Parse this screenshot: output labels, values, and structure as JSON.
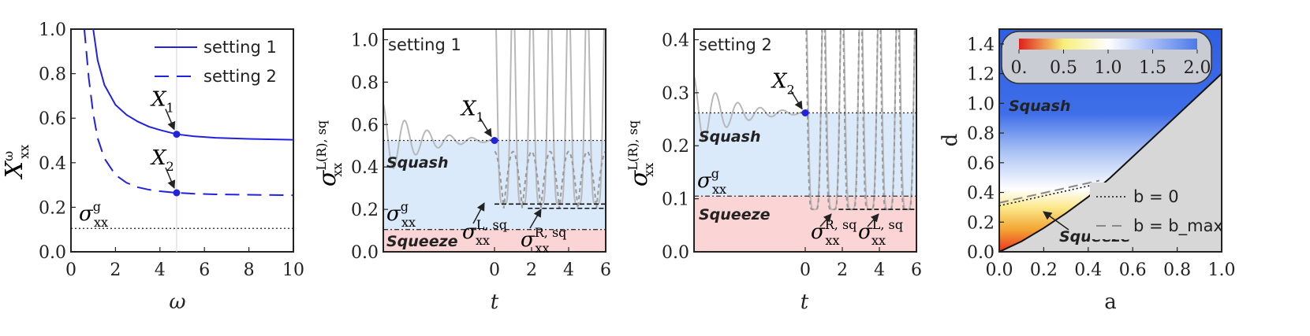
{
  "colors": {
    "blue": "#2222dd",
    "gray": "#b8b8b8",
    "squash_fill": "#dbeafb",
    "squeeze_fill": "#fbd5d5",
    "frame": "#222222"
  },
  "chart_data": [
    {
      "type": "line",
      "panel": "a",
      "title": "",
      "xlabel": "ω",
      "ylabel": "X_xx^ω",
      "ylabel_base": "X",
      "ylabel_sub": "xx",
      "ylabel_sup": "ω",
      "xlim": [
        0,
        10
      ],
      "ylim": [
        0,
        1.0
      ],
      "xticks": [
        "0",
        "2",
        "4",
        "6",
        "8",
        "10"
      ],
      "yticks": [
        "0.0",
        "0.2",
        "0.4",
        "0.6",
        "0.8",
        "1.0"
      ],
      "series": [
        {
          "name": "setting 1",
          "style": "solid",
          "x": [
            1.0,
            1.2,
            1.5,
            2,
            2.5,
            3,
            3.5,
            4,
            4.75,
            5.5,
            6.5,
            8,
            10
          ],
          "y": [
            1.0,
            0.86,
            0.75,
            0.66,
            0.615,
            0.585,
            0.562,
            0.547,
            0.528,
            0.519,
            0.512,
            0.507,
            0.503
          ]
        },
        {
          "name": "setting 2",
          "style": "dashed",
          "x": [
            0.6,
            0.8,
            1.0,
            1.2,
            1.5,
            2,
            2.5,
            3,
            3.5,
            4,
            4.75,
            5.5,
            6.5,
            8,
            10
          ],
          "y": [
            1.0,
            0.78,
            0.62,
            0.51,
            0.42,
            0.345,
            0.31,
            0.29,
            0.279,
            0.272,
            0.265,
            0.261,
            0.258,
            0.256,
            0.254
          ]
        }
      ],
      "markers": [
        {
          "label": "X",
          "sub": "1",
          "x": 4.75,
          "y": 0.528
        },
        {
          "label": "X",
          "sub": "2",
          "x": 4.75,
          "y": 0.265
        }
      ],
      "reference_line": {
        "label": "σ",
        "sub": "xx",
        "sup": "g",
        "y": 0.105
      },
      "vline_x": 4.75,
      "legend": [
        "setting 1",
        "setting 2"
      ]
    },
    {
      "type": "line",
      "panel": "b",
      "title": "setting 1",
      "xlabel": "t",
      "ylabel": "σ_xx^{L(R),sq}",
      "ylabel_base": "σ",
      "ylabel_sub": "xx",
      "ylabel_sup": "L(R), sq",
      "xlim": [
        -6,
        6
      ],
      "ylim": [
        0,
        1.05
      ],
      "xticks": [
        "0",
        "2",
        "4",
        "6"
      ],
      "yticks": [
        "0.0",
        "0.2",
        "0.4",
        "0.6",
        "0.8",
        "1.0"
      ],
      "levels": {
        "squash_top": 0.525,
        "g_level": 0.105,
        "L_level": 0.225,
        "R_level": 0.205
      },
      "marker": {
        "label": "X",
        "sub": "1",
        "x": 0,
        "y": 0.525
      },
      "region_labels": [
        "Squash",
        "Squeeze"
      ],
      "annotations": [
        {
          "label": "σ",
          "sub": "xx",
          "sup": "g"
        },
        {
          "label": "σ",
          "sub": "xx",
          "sup": "L, sq"
        },
        {
          "label": "σ",
          "sub": "xx",
          "sup": "R, sq"
        }
      ],
      "oscillation_periods": [
        1,
        2,
        3,
        4,
        5,
        6
      ]
    },
    {
      "type": "line",
      "panel": "c",
      "title": "setting 2",
      "xlabel": "t",
      "ylabel": "σ_xx^{L(R),sq}",
      "ylabel_base": "σ",
      "ylabel_sub": "xx",
      "ylabel_sup": "L(R), sq",
      "xlim": [
        -6,
        6
      ],
      "ylim": [
        0,
        0.42
      ],
      "xticks": [
        "0",
        "2",
        "4",
        "6"
      ],
      "yticks": [
        "0.0",
        "0.1",
        "0.2",
        "0.3",
        "0.4"
      ],
      "levels": {
        "squash_top": 0.262,
        "g_level": 0.105,
        "L_level": 0.08,
        "R_level": 0.08
      },
      "marker": {
        "label": "X",
        "sub": "2",
        "x": 0,
        "y": 0.262
      },
      "region_labels": [
        "Squash",
        "Squeeze"
      ],
      "annotations": [
        {
          "label": "σ",
          "sub": "xx",
          "sup": "g"
        },
        {
          "label": "σ",
          "sub": "xx",
          "sup": "R, sq"
        },
        {
          "label": "σ",
          "sub": "xx",
          "sup": "L, sq"
        }
      ],
      "oscillation_periods": [
        1,
        2,
        3,
        4,
        5,
        6
      ]
    },
    {
      "type": "heatmap",
      "panel": "d",
      "title": "",
      "xlabel": "a",
      "ylabel": "d",
      "xlim": [
        0,
        1.0
      ],
      "ylim": [
        0,
        1.5
      ],
      "xticks": [
        "0.0",
        "0.2",
        "0.4",
        "0.6",
        "0.8",
        "1.0"
      ],
      "yticks": [
        "0.0",
        "0.2",
        "0.4",
        "0.6",
        "0.8",
        "1.0",
        "1.2",
        "1.4"
      ],
      "colorbar": {
        "ticks": [
          "0.",
          "0.5",
          "1.0",
          "1.5",
          "2.0"
        ],
        "range": [
          0,
          2.0
        ],
        "colors": [
          "#e0201a",
          "#f7ef7a",
          "#ffffff",
          "#4c79ea"
        ]
      },
      "boundary": {
        "a": [
          0,
          0.1,
          0.2,
          0.3,
          0.4,
          0.5,
          0.6,
          0.7,
          0.8,
          0.9,
          1.0
        ],
        "d": [
          0,
          0.07,
          0.16,
          0.26,
          0.37,
          0.5,
          0.64,
          0.78,
          0.92,
          1.06,
          1.2
        ]
      },
      "line_b0": {
        "a": [
          0,
          0.45
        ],
        "d": [
          0.31,
          0.46
        ]
      },
      "line_bmax": {
        "a": [
          0,
          0.45
        ],
        "d": [
          0.33,
          0.48
        ]
      },
      "region_labels": [
        "Squash",
        "Squeeze"
      ],
      "legend": [
        "b = 0",
        "b = b_max"
      ]
    }
  ]
}
